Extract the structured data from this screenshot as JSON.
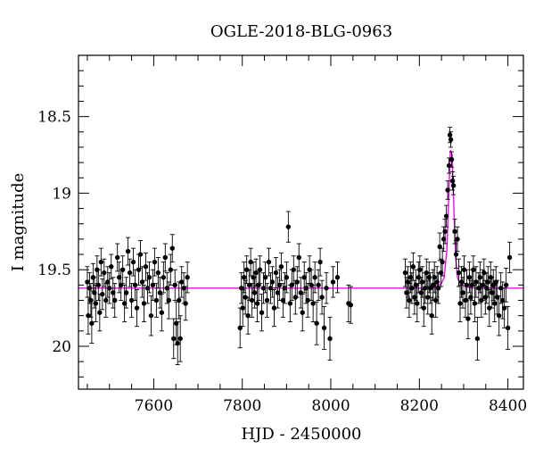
{
  "chart_data": {
    "type": "scatter",
    "title": "OGLE-2018-BLG-0963",
    "xlabel": "HJD - 2450000",
    "ylabel": "I magnitude",
    "xlim": [
      7430,
      8435
    ],
    "ylim": [
      20.28,
      18.1
    ],
    "y_inverted": true,
    "grid": false,
    "x_ticks": [
      7600,
      7800,
      8000,
      8200,
      8400
    ],
    "x_tick_labels": [
      "7600",
      "7800",
      "8000",
      "8200",
      "8400"
    ],
    "y_ticks": [
      18.5,
      19,
      19.5,
      20
    ],
    "y_tick_labels": [
      "18.5",
      "19",
      "19.5",
      "20"
    ],
    "colors": {
      "points": "#000000",
      "errorbars": "#000000",
      "model": "#ff00ff"
    },
    "model": {
      "name": "",
      "baseline": 19.62,
      "x": [
        7430,
        8230,
        8240,
        8250,
        8256,
        8262,
        8266,
        8270,
        8274,
        8278,
        8282,
        8286,
        8290,
        8296,
        8305,
        8320,
        8435
      ],
      "y": [
        19.62,
        19.62,
        19.61,
        19.59,
        19.55,
        19.38,
        19.05,
        18.72,
        18.75,
        19.1,
        19.42,
        19.55,
        19.58,
        19.6,
        19.61,
        19.62,
        19.62
      ]
    },
    "series": [
      {
        "points": [
          [
            7450,
            19.58,
            0.1
          ],
          [
            7452,
            19.8,
            0.12
          ],
          [
            7455,
            19.62,
            0.1
          ],
          [
            7458,
            19.7,
            0.11
          ],
          [
            7460,
            19.85,
            0.13
          ],
          [
            7463,
            19.55,
            0.09
          ],
          [
            7466,
            19.65,
            0.1
          ],
          [
            7469,
            19.72,
            0.12
          ],
          [
            7472,
            19.5,
            0.09
          ],
          [
            7475,
            19.6,
            0.1
          ],
          [
            7478,
            19.78,
            0.12
          ],
          [
            7481,
            19.45,
            0.09
          ],
          [
            7484,
            19.66,
            0.1
          ],
          [
            7488,
            19.52,
            0.09
          ],
          [
            7492,
            19.7,
            0.11
          ],
          [
            7496,
            19.58,
            0.1
          ],
          [
            7500,
            19.62,
            0.1
          ],
          [
            7504,
            19.48,
            0.08
          ],
          [
            7508,
            19.65,
            0.1
          ],
          [
            7512,
            19.7,
            0.11
          ],
          [
            7518,
            19.42,
            0.09
          ],
          [
            7522,
            19.55,
            0.1
          ],
          [
            7526,
            19.6,
            0.1
          ],
          [
            7530,
            19.5,
            0.09
          ],
          [
            7534,
            19.72,
            0.12
          ],
          [
            7538,
            19.65,
            0.1
          ],
          [
            7542,
            19.38,
            0.09
          ],
          [
            7546,
            19.52,
            0.09
          ],
          [
            7550,
            19.7,
            0.11
          ],
          [
            7554,
            19.45,
            0.09
          ],
          [
            7558,
            19.6,
            0.1
          ],
          [
            7562,
            19.75,
            0.12
          ],
          [
            7566,
            19.5,
            0.1
          ],
          [
            7570,
            19.4,
            0.09
          ],
          [
            7574,
            19.58,
            0.1
          ],
          [
            7578,
            19.72,
            0.12
          ],
          [
            7582,
            19.48,
            0.09
          ],
          [
            7586,
            19.62,
            0.1
          ],
          [
            7590,
            19.55,
            0.1
          ],
          [
            7594,
            19.8,
            0.13
          ],
          [
            7598,
            19.6,
            0.1
          ],
          [
            7602,
            19.45,
            0.09
          ],
          [
            7606,
            19.7,
            0.11
          ],
          [
            7610,
            19.52,
            0.1
          ],
          [
            7614,
            19.65,
            0.1
          ],
          [
            7618,
            19.78,
            0.12
          ],
          [
            7622,
            19.55,
            0.1
          ],
          [
            7626,
            19.42,
            0.09
          ],
          [
            7630,
            19.62,
            0.1
          ],
          [
            7634,
            19.7,
            0.12
          ],
          [
            7638,
            19.5,
            0.1
          ],
          [
            7642,
            19.36,
            0.09
          ],
          [
            7645,
            19.95,
            0.13
          ],
          [
            7648,
            19.6,
            0.1
          ],
          [
            7651,
            19.85,
            0.14
          ],
          [
            7654,
            19.98,
            0.14
          ],
          [
            7657,
            19.7,
            0.12
          ],
          [
            7660,
            19.95,
            0.15
          ],
          [
            7663,
            19.58,
            0.1
          ],
          [
            7668,
            19.62,
            0.1
          ],
          [
            7672,
            19.72,
            0.11
          ],
          [
            7676,
            19.55,
            0.1
          ],
          [
            7795,
            19.88,
            0.13
          ],
          [
            7798,
            19.62,
            0.1
          ],
          [
            7801,
            19.75,
            0.12
          ],
          [
            7804,
            19.55,
            0.1
          ],
          [
            7807,
            19.68,
            0.11
          ],
          [
            7810,
            19.5,
            0.09
          ],
          [
            7813,
            19.8,
            0.12
          ],
          [
            7816,
            19.6,
            0.1
          ],
          [
            7819,
            19.45,
            0.09
          ],
          [
            7822,
            19.7,
            0.11
          ],
          [
            7825,
            19.55,
            0.1
          ],
          [
            7828,
            19.65,
            0.1
          ],
          [
            7831,
            19.52,
            0.09
          ],
          [
            7834,
            19.72,
            0.12
          ],
          [
            7837,
            19.6,
            0.1
          ],
          [
            7840,
            19.5,
            0.09
          ],
          [
            7844,
            19.78,
            0.12
          ],
          [
            7848,
            19.62,
            0.1
          ],
          [
            7852,
            19.55,
            0.1
          ],
          [
            7856,
            19.7,
            0.11
          ],
          [
            7860,
            19.45,
            0.09
          ],
          [
            7864,
            19.62,
            0.1
          ],
          [
            7868,
            19.58,
            0.1
          ],
          [
            7872,
            19.75,
            0.12
          ],
          [
            7876,
            19.52,
            0.1
          ],
          [
            7880,
            19.65,
            0.1
          ],
          [
            7884,
            19.6,
            0.1
          ],
          [
            7888,
            19.48,
            0.09
          ],
          [
            7892,
            19.7,
            0.11
          ],
          [
            7896,
            19.62,
            0.1
          ],
          [
            7900,
            19.55,
            0.1
          ],
          [
            7904,
            19.22,
            0.1
          ],
          [
            7908,
            19.72,
            0.12
          ],
          [
            7912,
            19.6,
            0.1
          ],
          [
            7916,
            19.5,
            0.09
          ],
          [
            7920,
            19.68,
            0.11
          ],
          [
            7924,
            19.58,
            0.1
          ],
          [
            7928,
            19.42,
            0.09
          ],
          [
            7932,
            19.65,
            0.1
          ],
          [
            7936,
            19.78,
            0.12
          ],
          [
            7940,
            19.55,
            0.1
          ],
          [
            7944,
            19.62,
            0.1
          ],
          [
            7948,
            19.7,
            0.11
          ],
          [
            7952,
            19.5,
            0.09
          ],
          [
            7956,
            19.6,
            0.1
          ],
          [
            7960,
            19.72,
            0.12
          ],
          [
            7964,
            19.55,
            0.1
          ],
          [
            7968,
            19.85,
            0.14
          ],
          [
            7972,
            19.6,
            0.1
          ],
          [
            7976,
            19.45,
            0.09
          ],
          [
            7980,
            19.68,
            0.11
          ],
          [
            7985,
            19.88,
            0.14
          ],
          [
            7990,
            19.62,
            0.1
          ],
          [
            7998,
            19.95,
            0.14
          ],
          [
            8005,
            19.58,
            0.1
          ],
          [
            8015,
            19.55,
            0.1
          ],
          [
            8040,
            19.72,
            0.12
          ],
          [
            8045,
            19.73,
            0.12
          ],
          [
            8168,
            19.52,
            0.09
          ],
          [
            8171,
            19.65,
            0.1
          ],
          [
            8174,
            19.58,
            0.1
          ],
          [
            8177,
            19.7,
            0.11
          ],
          [
            8180,
            19.55,
            0.1
          ],
          [
            8183,
            19.62,
            0.1
          ],
          [
            8186,
            19.48,
            0.09
          ],
          [
            8189,
            19.68,
            0.11
          ],
          [
            8192,
            19.6,
            0.1
          ],
          [
            8195,
            19.72,
            0.12
          ],
          [
            8198,
            19.55,
            0.1
          ],
          [
            8201,
            19.5,
            0.09
          ],
          [
            8204,
            19.65,
            0.1
          ],
          [
            8207,
            19.58,
            0.1
          ],
          [
            8210,
            19.75,
            0.12
          ],
          [
            8213,
            19.62,
            0.1
          ],
          [
            8216,
            19.52,
            0.09
          ],
          [
            8219,
            19.68,
            0.11
          ],
          [
            8222,
            19.55,
            0.1
          ],
          [
            8225,
            19.62,
            0.1
          ],
          [
            8228,
            19.8,
            0.12
          ],
          [
            8231,
            19.6,
            0.1
          ],
          [
            8234,
            19.55,
            0.1
          ],
          [
            8237,
            19.7,
            0.11
          ],
          [
            8240,
            19.58,
            0.1
          ],
          [
            8243,
            19.62,
            0.1
          ],
          [
            8246,
            19.35,
            0.09
          ],
          [
            8249,
            19.52,
            0.09
          ],
          [
            8252,
            19.45,
            0.09
          ],
          [
            8255,
            19.3,
            0.08
          ],
          [
            8258,
            19.25,
            0.08
          ],
          [
            8261,
            19.15,
            0.07
          ],
          [
            8264,
            18.98,
            0.06
          ],
          [
            8267,
            18.82,
            0.05
          ],
          [
            8269,
            18.62,
            0.05
          ],
          [
            8271,
            18.65,
            0.05
          ],
          [
            8273,
            18.78,
            0.05
          ],
          [
            8275,
            18.92,
            0.06
          ],
          [
            8277,
            18.95,
            0.06
          ],
          [
            8280,
            19.25,
            0.08
          ],
          [
            8283,
            19.4,
            0.09
          ],
          [
            8286,
            19.3,
            0.08
          ],
          [
            8289,
            19.52,
            0.09
          ],
          [
            8292,
            19.72,
            0.12
          ],
          [
            8295,
            19.58,
            0.1
          ],
          [
            8298,
            19.65,
            0.1
          ],
          [
            8301,
            19.5,
            0.09
          ],
          [
            8304,
            19.7,
            0.11
          ],
          [
            8307,
            19.6,
            0.1
          ],
          [
            8310,
            19.82,
            0.13
          ],
          [
            8313,
            19.55,
            0.1
          ],
          [
            8316,
            19.68,
            0.11
          ],
          [
            8319,
            19.6,
            0.1
          ],
          [
            8322,
            19.5,
            0.09
          ],
          [
            8325,
            19.72,
            0.12
          ],
          [
            8328,
            19.58,
            0.1
          ],
          [
            8331,
            19.95,
            0.14
          ],
          [
            8334,
            19.62,
            0.1
          ],
          [
            8337,
            19.55,
            0.1
          ],
          [
            8340,
            19.7,
            0.11
          ],
          [
            8343,
            19.6,
            0.1
          ],
          [
            8346,
            19.52,
            0.09
          ],
          [
            8349,
            19.68,
            0.11
          ],
          [
            8352,
            19.62,
            0.1
          ],
          [
            8355,
            19.58,
            0.1
          ],
          [
            8358,
            19.75,
            0.12
          ],
          [
            8361,
            19.55,
            0.1
          ],
          [
            8364,
            19.65,
            0.1
          ],
          [
            8367,
            19.6,
            0.1
          ],
          [
            8370,
            19.72,
            0.12
          ],
          [
            8373,
            19.58,
            0.1
          ],
          [
            8376,
            19.68,
            0.11
          ],
          [
            8380,
            19.8,
            0.13
          ],
          [
            8384,
            19.62,
            0.1
          ],
          [
            8388,
            19.7,
            0.12
          ],
          [
            8392,
            19.75,
            0.13
          ],
          [
            8396,
            19.6,
            0.11
          ],
          [
            8400,
            19.88,
            0.14
          ],
          [
            8404,
            19.42,
            0.1
          ]
        ]
      }
    ]
  }
}
